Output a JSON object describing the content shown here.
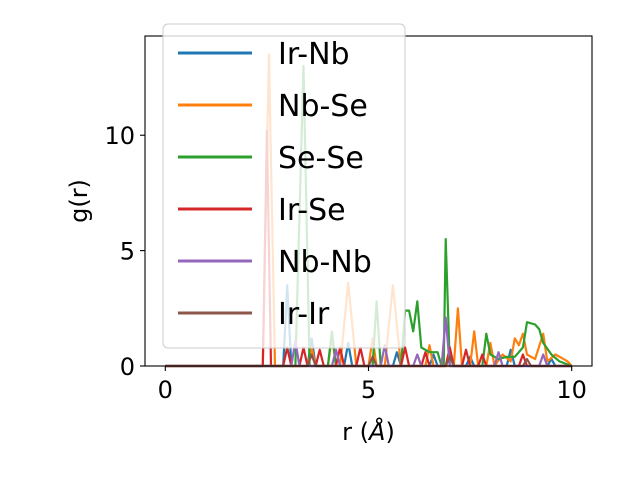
{
  "chart_data": {
    "type": "line",
    "xlabel": "r (",
    "xlabel_unit": "Å",
    "xlabel_close": ")",
    "ylabel": "g(r)",
    "xlim": [
      -0.5,
      10.5
    ],
    "ylim": [
      0,
      14.3
    ],
    "xticks": [
      0,
      5,
      10
    ],
    "yticks": [
      0,
      5,
      10
    ],
    "legend_position": "upper-left",
    "grid": false,
    "series": [
      {
        "name": "Ir-Nb",
        "color": "#1f77b4",
        "points": [
          [
            0,
            0
          ],
          [
            2.9,
            0
          ],
          [
            3.0,
            3.5
          ],
          [
            3.1,
            0
          ],
          [
            3.5,
            0
          ],
          [
            3.6,
            1.2
          ],
          [
            3.7,
            0
          ],
          [
            4.4,
            0
          ],
          [
            4.5,
            1.0
          ],
          [
            4.6,
            0
          ],
          [
            5.6,
            0
          ],
          [
            5.7,
            0.6
          ],
          [
            5.8,
            0
          ],
          [
            6.5,
            0
          ],
          [
            6.6,
            0.5
          ],
          [
            6.7,
            0
          ],
          [
            7.4,
            0
          ],
          [
            7.5,
            0.4
          ],
          [
            7.6,
            0
          ],
          [
            8.4,
            0
          ],
          [
            8.5,
            0.7
          ],
          [
            8.6,
            0
          ],
          [
            9.4,
            0
          ],
          [
            9.5,
            0.3
          ],
          [
            9.6,
            0
          ],
          [
            10,
            0
          ]
        ]
      },
      {
        "name": "Nb-Se",
        "color": "#ff7f0e",
        "points": [
          [
            0,
            0
          ],
          [
            2.4,
            0
          ],
          [
            2.55,
            13.5
          ],
          [
            2.7,
            0
          ],
          [
            3.5,
            0
          ],
          [
            3.6,
            0.8
          ],
          [
            3.7,
            0
          ],
          [
            4.0,
            0
          ],
          [
            4.1,
            1.3
          ],
          [
            4.2,
            0
          ],
          [
            4.3,
            0
          ],
          [
            4.5,
            3.6
          ],
          [
            4.7,
            0
          ],
          [
            5.0,
            0
          ],
          [
            5.1,
            1.2
          ],
          [
            5.2,
            0
          ],
          [
            5.4,
            0
          ],
          [
            5.6,
            3.5
          ],
          [
            5.8,
            0
          ],
          [
            6.4,
            0
          ],
          [
            6.5,
            0.9
          ],
          [
            6.6,
            0
          ],
          [
            7.1,
            0
          ],
          [
            7.2,
            2.5
          ],
          [
            7.3,
            0
          ],
          [
            7.5,
            0
          ],
          [
            7.6,
            1.5
          ],
          [
            7.7,
            0
          ],
          [
            7.9,
            0
          ],
          [
            8.0,
            1.0
          ],
          [
            8.1,
            0
          ],
          [
            8.3,
            0.5
          ],
          [
            8.5,
            0.2
          ],
          [
            8.6,
            1.2
          ],
          [
            8.7,
            0.9
          ],
          [
            8.8,
            1.4
          ],
          [
            8.9,
            0.5
          ],
          [
            9.1,
            0.3
          ],
          [
            9.3,
            1.4
          ],
          [
            9.4,
            0.2
          ],
          [
            9.6,
            0.5
          ],
          [
            9.8,
            0.3
          ],
          [
            9.9,
            0.2
          ],
          [
            10,
            0
          ]
        ]
      },
      {
        "name": "Se-Se",
        "color": "#2ca02c",
        "points": [
          [
            0,
            0
          ],
          [
            3.2,
            0
          ],
          [
            3.4,
            13.0
          ],
          [
            3.55,
            0
          ],
          [
            4.0,
            0
          ],
          [
            4.1,
            1.5
          ],
          [
            4.2,
            0
          ],
          [
            5.1,
            0
          ],
          [
            5.2,
            2.8
          ],
          [
            5.3,
            0
          ],
          [
            5.8,
            0
          ],
          [
            5.9,
            2.4
          ],
          [
            6.0,
            2.4
          ],
          [
            6.1,
            1.5
          ],
          [
            6.2,
            2.8
          ],
          [
            6.3,
            0.8
          ],
          [
            6.5,
            0.6
          ],
          [
            6.7,
            0.6
          ],
          [
            6.8,
            0
          ],
          [
            6.85,
            0
          ],
          [
            6.9,
            5.5
          ],
          [
            7.0,
            0
          ],
          [
            7.8,
            0
          ],
          [
            7.9,
            1.4
          ],
          [
            8.0,
            0.5
          ],
          [
            8.2,
            0.3
          ],
          [
            8.4,
            0.4
          ],
          [
            8.6,
            0.4
          ],
          [
            8.8,
            0.8
          ],
          [
            8.9,
            1.9
          ],
          [
            9.1,
            1.8
          ],
          [
            9.2,
            1.6
          ],
          [
            9.3,
            1.0
          ],
          [
            9.5,
            0.5
          ],
          [
            9.7,
            0.2
          ],
          [
            10,
            0
          ]
        ]
      },
      {
        "name": "Ir-Se",
        "color": "#d62728",
        "points": [
          [
            0,
            0
          ],
          [
            2.4,
            0
          ],
          [
            2.5,
            10.2
          ],
          [
            2.6,
            0
          ],
          [
            2.9,
            0
          ],
          [
            3.0,
            0.8
          ],
          [
            3.1,
            0
          ],
          [
            3.3,
            0
          ],
          [
            3.4,
            0.8
          ],
          [
            3.5,
            0
          ],
          [
            3.7,
            0
          ],
          [
            3.8,
            0.7
          ],
          [
            3.9,
            0
          ],
          [
            4.2,
            0
          ],
          [
            4.3,
            0.8
          ],
          [
            4.4,
            0
          ],
          [
            4.7,
            0
          ],
          [
            4.8,
            0.8
          ],
          [
            4.9,
            0
          ],
          [
            5.8,
            0
          ],
          [
            5.9,
            0.8
          ],
          [
            6.0,
            0
          ],
          [
            6.3,
            0
          ],
          [
            6.4,
            0.6
          ],
          [
            6.5,
            0
          ],
          [
            6.9,
            0
          ],
          [
            7.0,
            0.8
          ],
          [
            7.1,
            0
          ],
          [
            7.3,
            0
          ],
          [
            7.4,
            0.7
          ],
          [
            7.5,
            0
          ],
          [
            7.7,
            0
          ],
          [
            7.8,
            0.5
          ],
          [
            7.9,
            0
          ],
          [
            8.7,
            0
          ],
          [
            8.8,
            0.5
          ],
          [
            8.9,
            0
          ],
          [
            10,
            0
          ]
        ]
      },
      {
        "name": "Nb-Nb",
        "color": "#9467bd",
        "points": [
          [
            0,
            0
          ],
          [
            3.1,
            0
          ],
          [
            3.2,
            1.1
          ],
          [
            3.3,
            0
          ],
          [
            4.1,
            0
          ],
          [
            4.2,
            0.7
          ],
          [
            4.3,
            0
          ],
          [
            5.3,
            0
          ],
          [
            5.4,
            0.9
          ],
          [
            5.5,
            0
          ],
          [
            6.1,
            0
          ],
          [
            6.2,
            0.5
          ],
          [
            6.3,
            0
          ],
          [
            6.8,
            0
          ],
          [
            6.9,
            2.1
          ],
          [
            7.0,
            0
          ],
          [
            8.1,
            0
          ],
          [
            8.2,
            0.6
          ],
          [
            8.3,
            0
          ],
          [
            9.2,
            0
          ],
          [
            9.3,
            0.5
          ],
          [
            9.4,
            0
          ],
          [
            10,
            0
          ]
        ]
      },
      {
        "name": "Ir-Ir",
        "color": "#8c564b",
        "points": [
          [
            0,
            0
          ],
          [
            3.5,
            0
          ],
          [
            3.6,
            0.5
          ],
          [
            3.7,
            0
          ],
          [
            5.0,
            0
          ],
          [
            5.1,
            0.4
          ],
          [
            5.2,
            0
          ],
          [
            6.9,
            0
          ],
          [
            7.0,
            0.4
          ],
          [
            7.1,
            0
          ],
          [
            8.8,
            0
          ],
          [
            8.9,
            0.3
          ],
          [
            9.0,
            0
          ],
          [
            10,
            0
          ]
        ]
      }
    ]
  }
}
